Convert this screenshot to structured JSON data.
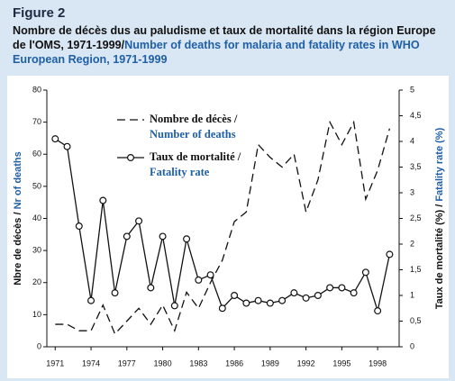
{
  "chart_data": {
    "type": "line",
    "figure": "Figure 2",
    "subtitle": "Nombre de décès dus au paludisme et taux de mortalité dans la région Europe de l'OMS, 1971-1999/",
    "subtitle_en": "Number of deaths for malaria and fatality rates in WHO European Region, 1971-1999",
    "y_label": "Nbre de décès / ",
    "y_label_en": "Nr of deaths",
    "y2_label": "Taux de mortalité (%) / ",
    "y2_label_en": "Fatality rate (%)",
    "x": [
      1971,
      1972,
      1973,
      1974,
      1975,
      1976,
      1977,
      1978,
      1979,
      1980,
      1981,
      1982,
      1983,
      1984,
      1985,
      1986,
      1987,
      1988,
      1989,
      1990,
      1991,
      1992,
      1993,
      1994,
      1995,
      1996,
      1997,
      1998,
      1999
    ],
    "xlim": [
      1970.3,
      1999.8
    ],
    "xticks": [
      1971,
      1974,
      1977,
      1980,
      1983,
      1986,
      1989,
      1992,
      1995,
      1998
    ],
    "ylim": [
      0,
      80
    ],
    "yticks": [
      0,
      10,
      20,
      30,
      40,
      50,
      60,
      70,
      80
    ],
    "y2lim": [
      0,
      5
    ],
    "y2ticks": [
      0,
      {
        "value": 0.5,
        "label": "0,5"
      },
      1,
      {
        "value": 1.5,
        "label": "1,5"
      },
      2,
      {
        "value": 2.5,
        "label": "2,5"
      },
      3,
      {
        "value": 3.5,
        "label": "3,5"
      },
      4,
      {
        "value": 4.5,
        "label": "4,5"
      },
      5
    ],
    "series": [
      {
        "name": "Nombre de décès /",
        "name_en": "Number of deaths",
        "color": "#111",
        "dashed": true,
        "values": [
          7,
          7,
          5,
          5,
          13,
          4,
          8,
          12,
          7,
          13,
          5,
          17,
          12,
          20,
          27,
          39,
          42,
          63,
          59,
          56,
          60,
          42,
          52,
          70,
          63,
          70,
          46,
          55,
          68
        ]
      },
      {
        "name": "Taux de mortalité /",
        "name_en": "Fatality rate",
        "color": "#111",
        "axis": "y2",
        "marker": true,
        "values": [
          4.05,
          3.9,
          2.35,
          0.9,
          2.85,
          1.05,
          2.15,
          2.45,
          1.15,
          2.15,
          0.8,
          2.1,
          1.3,
          1.4,
          0.75,
          1,
          0.85,
          0.9,
          0.85,
          0.9,
          1.05,
          0.95,
          1,
          1.15,
          1.15,
          1.05,
          1.45,
          0.7,
          1.8
        ]
      }
    ]
  }
}
